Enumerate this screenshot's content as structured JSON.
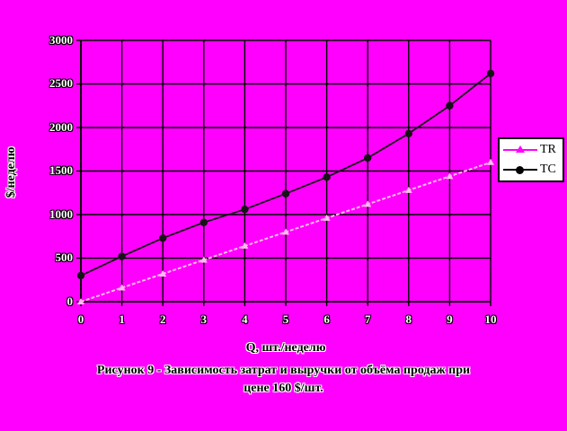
{
  "window": {
    "background": "#ff00ff"
  },
  "chart_data": {
    "type": "line",
    "x": [
      0,
      1,
      2,
      3,
      4,
      5,
      6,
      7,
      8,
      9,
      10
    ],
    "x_tick_labels": [
      "0",
      "1",
      "2",
      "3",
      "4",
      "5",
      "6",
      "7",
      "8",
      "9",
      "10"
    ],
    "y_tick_labels_top_to_bottom": [
      "3000",
      "2500",
      "2000",
      "1500",
      "1000",
      "500",
      "0"
    ],
    "series": [
      {
        "name": "TR",
        "values": [
          0,
          160,
          320,
          480,
          640,
          800,
          960,
          1120,
          1280,
          1440,
          1600
        ],
        "chart_color": "#ffbcec",
        "legend_color": "#ff00ff",
        "marker": "triangle"
      },
      {
        "name": "TC",
        "values": [
          300,
          520,
          730,
          910,
          1060,
          1240,
          1430,
          1650,
          1930,
          2250,
          2620
        ],
        "chart_color": "#141414",
        "legend_color": "#000000",
        "marker": "circle"
      }
    ],
    "xlabel": "Q, шт./неделю",
    "ylabel": "$/неделю",
    "xlim": [
      0,
      10
    ],
    "ylim": [
      0,
      3000
    ],
    "y_step": 500,
    "grid": true,
    "gridline_color": "#000000",
    "legend_position": "right",
    "plot_background": "#ff00ff"
  },
  "caption": {
    "line1": "Рисунок 9 -  Зависимость затрат и выручки от объёма продаж при",
    "line2": "цене 160 $/шт."
  }
}
